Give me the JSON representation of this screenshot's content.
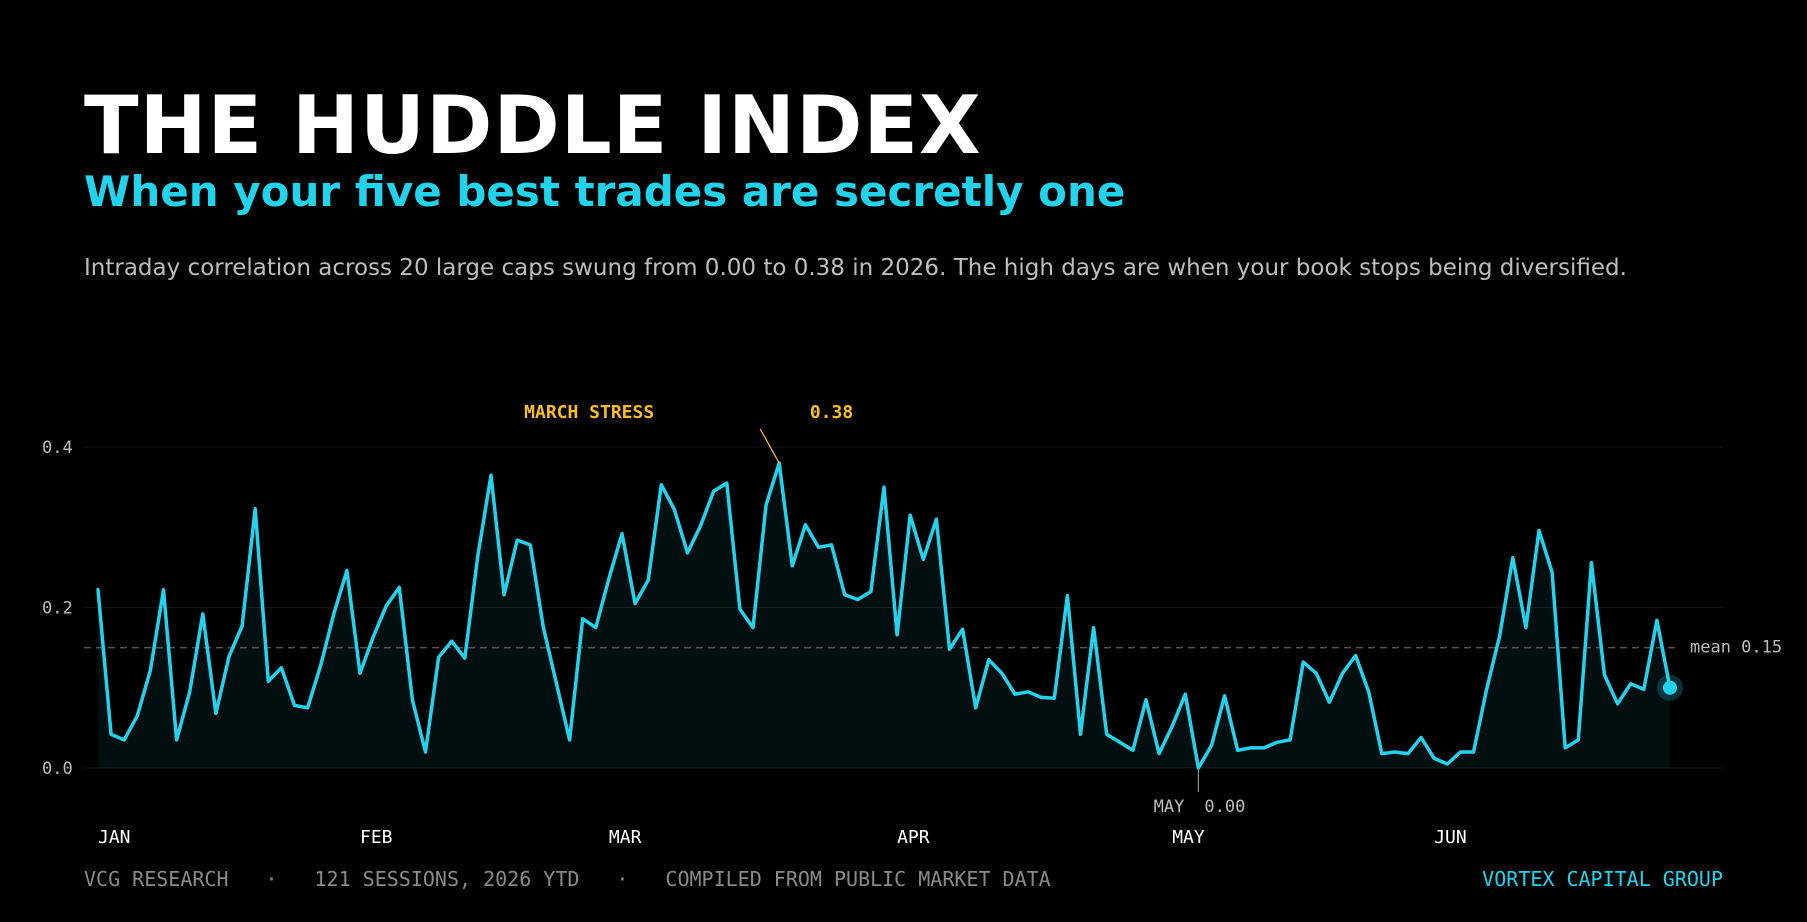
{
  "header": {
    "title": "THE HUDDLE INDEX",
    "subtitle": "When your five best trades are secretly one",
    "description": "Intraday correlation across 20 large caps swung from 0.00 to 0.38 in 2026. The high days are when your book stops being diversified."
  },
  "colors": {
    "background": "#000000",
    "line": "#22d3ee",
    "title": "#ffffff",
    "body_text": "#bdbdbd",
    "muted": "#8a8a8a",
    "annotation_peak": "#fbbf24",
    "mean_line": "#555555"
  },
  "chart_data": {
    "type": "area",
    "title": "",
    "xlabel": "",
    "ylabel": "",
    "ylim": [
      0,
      0.4
    ],
    "yticks": [
      "0.0",
      "0.2",
      "0.4"
    ],
    "grid": true,
    "month_labels": [
      "JAN",
      "FEB",
      "MAR",
      "APR",
      "MAY",
      "JUN"
    ],
    "month_starts": [
      1,
      21,
      40,
      62,
      83,
      103
    ],
    "x": [
      1,
      2,
      3,
      4,
      5,
      6,
      7,
      8,
      9,
      10,
      11,
      12,
      13,
      14,
      15,
      16,
      17,
      18,
      19,
      20,
      21,
      22,
      23,
      24,
      25,
      26,
      27,
      28,
      29,
      30,
      31,
      32,
      33,
      34,
      35,
      36,
      37,
      38,
      39,
      40,
      41,
      42,
      43,
      44,
      45,
      46,
      47,
      48,
      49,
      50,
      51,
      52,
      53,
      54,
      55,
      56,
      57,
      58,
      59,
      60,
      61,
      62,
      63,
      64,
      65,
      66,
      67,
      68,
      69,
      70,
      71,
      72,
      73,
      74,
      75,
      76,
      77,
      78,
      79,
      80,
      81,
      82,
      83,
      84,
      85,
      86,
      87,
      88,
      89,
      90,
      91,
      92,
      93,
      94,
      95,
      96,
      97,
      98,
      99,
      100,
      101,
      102,
      103,
      104,
      105,
      106,
      107,
      108,
      109,
      110,
      111,
      112,
      113,
      114,
      115,
      116,
      117,
      118,
      119,
      120,
      121
    ],
    "values": [
      0.222,
      0.042,
      0.035,
      0.065,
      0.122,
      0.222,
      0.035,
      0.095,
      0.192,
      0.068,
      0.139,
      0.177,
      0.323,
      0.108,
      0.125,
      0.078,
      0.075,
      0.128,
      0.192,
      0.246,
      0.118,
      0.163,
      0.202,
      0.225,
      0.085,
      0.02,
      0.138,
      0.158,
      0.137,
      0.265,
      0.365,
      0.216,
      0.284,
      0.278,
      0.175,
      0.105,
      0.035,
      0.186,
      0.175,
      0.236,
      0.292,
      0.205,
      0.234,
      0.353,
      0.322,
      0.268,
      0.302,
      0.345,
      0.355,
      0.198,
      0.175,
      0.328,
      0.38,
      0.252,
      0.303,
      0.275,
      0.278,
      0.216,
      0.21,
      0.22,
      0.35,
      0.166,
      0.315,
      0.26,
      0.31,
      0.148,
      0.173,
      0.075,
      0.135,
      0.118,
      0.092,
      0.095,
      0.088,
      0.087,
      0.215,
      0.042,
      0.175,
      0.042,
      0.032,
      0.022,
      0.085,
      0.018,
      0.052,
      0.092,
      0.0,
      0.028,
      0.09,
      0.022,
      0.025,
      0.025,
      0.032,
      0.035,
      0.132,
      0.118,
      0.082,
      0.118,
      0.14,
      0.095,
      0.018,
      0.02,
      0.018,
      0.038,
      0.012,
      0.005,
      0.02,
      0.02,
      0.098,
      0.165,
      0.262,
      0.175,
      0.296,
      0.244,
      0.025,
      0.035,
      0.256,
      0.116,
      0.08,
      0.105,
      0.098,
      0.184,
      0.1
    ],
    "mean": 0.15,
    "mean_label": "mean 0.15",
    "annotations": {
      "peak": {
        "label": "MARCH STRESS",
        "value_text": "0.38",
        "x": 53,
        "y": 0.38
      },
      "low": {
        "label": "MAY",
        "value_text": "0.00",
        "x": 85,
        "y": 0.0
      }
    }
  },
  "footer": {
    "left": [
      "VCG RESEARCH",
      "121 SESSIONS, 2026 YTD",
      "COMPILED FROM PUBLIC MARKET DATA"
    ],
    "separator": "·",
    "right": "VORTEX CAPITAL GROUP"
  }
}
